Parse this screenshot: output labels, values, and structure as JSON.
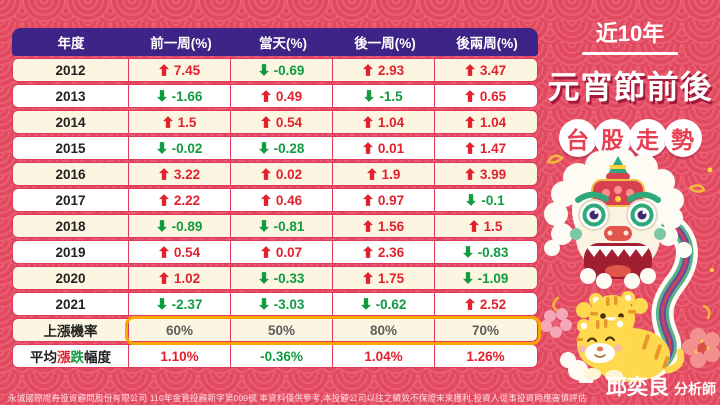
{
  "chart_data": {
    "type": "table",
    "title": "近10年 元宵節前後 台股走勢",
    "columns": [
      "年度",
      "前一周(%)",
      "當天(%)",
      "後一周(%)",
      "後兩周(%)"
    ],
    "rows": [
      {
        "year": "2012",
        "values": [
          "7.45",
          "-0.69",
          "2.93",
          "3.47"
        ]
      },
      {
        "year": "2013",
        "values": [
          "-1.66",
          "0.49",
          "-1.5",
          "0.65"
        ]
      },
      {
        "year": "2014",
        "values": [
          "1.5",
          "0.54",
          "1.04",
          "1.04"
        ]
      },
      {
        "year": "2015",
        "values": [
          "-0.02",
          "-0.28",
          "0.01",
          "1.47"
        ]
      },
      {
        "year": "2016",
        "values": [
          "3.22",
          "0.02",
          "1.9",
          "3.99"
        ]
      },
      {
        "year": "2017",
        "values": [
          "2.22",
          "0.46",
          "0.97",
          "-0.1"
        ]
      },
      {
        "year": "2018",
        "values": [
          "-0.89",
          "-0.81",
          "1.56",
          "1.5"
        ]
      },
      {
        "year": "2019",
        "values": [
          "0.54",
          "0.07",
          "2.36",
          "-0.83"
        ]
      },
      {
        "year": "2020",
        "values": [
          "1.02",
          "-0.33",
          "1.75",
          "-1.09"
        ]
      },
      {
        "year": "2021",
        "values": [
          "-2.37",
          "-3.03",
          "-0.62",
          "2.52"
        ]
      }
    ],
    "summary_rows": [
      {
        "label": "上漲機率",
        "values": [
          "60%",
          "50%",
          "80%",
          "70%"
        ],
        "highlight": true
      },
      {
        "label": "平均漲跌幅度",
        "label_parts": [
          [
            "平均",
            "#222222"
          ],
          [
            "漲",
            "#e2212d"
          ],
          [
            "跌",
            "#109b40"
          ],
          [
            "幅度",
            "#222222"
          ]
        ],
        "values": [
          "1.10%",
          "-0.36%",
          "1.04%",
          "1.26%"
        ],
        "highlight": false
      }
    ],
    "legend": {
      "up_arrow": "上漲",
      "down_arrow": "下跌"
    }
  },
  "side_panel": {
    "subtitle": "近10年",
    "title": "元宵節前後",
    "badge_chars": [
      "台",
      "股",
      "走",
      "勢"
    ],
    "analyst_name": "邱奕良",
    "analyst_title": "分析師"
  },
  "footer": {
    "disclaimer": "永誠國際證券投資顧問股份有限公司  110年金管投顧新字第009號   本資料僅供參考,本投顧公司以往之績效不保證未來獲利,投資人從事投資時應審慎評估"
  },
  "colors": {
    "background": "#e1495f",
    "wave_pattern": "#ea5e74",
    "header_bg": "#3d2486",
    "row_cream": "#fbf5e1",
    "row_white": "#ffffff",
    "cell_border": "#e0395c",
    "up": "#e2212d",
    "down": "#109b40",
    "win_rate_text": "#5d5d5d",
    "highlight_border": "#ffa602",
    "badge_text": "#e73e50"
  }
}
